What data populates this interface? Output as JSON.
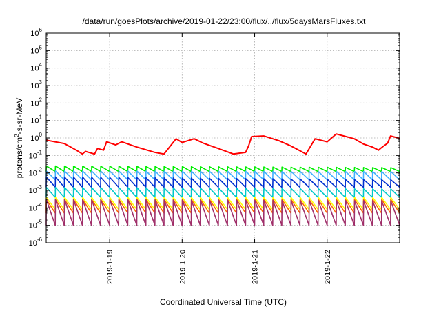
{
  "chart_data": {
    "type": "line",
    "title": "/data/run/goesPlots/archive/2019-01-22/23:00/flux/../flux/5daysMarsFluxes.txt",
    "xlabel": "Coordinated Universal Time (UTC)",
    "ylabel": "protons/cm²-s-sr-MeV",
    "y_scale": "log",
    "ylim_exponents": [
      -6,
      6
    ],
    "y_tick_labels": [
      "10-6",
      "10-5",
      "10-4",
      "10-3",
      "10-2",
      "10-1",
      "100",
      "101",
      "102",
      "103",
      "104",
      "105",
      "106"
    ],
    "x_unit": "day",
    "xlim": [
      "2019-01-18 03:00",
      "2019-01-23 00:00"
    ],
    "x_ticks": [
      "2019-1-19",
      "2019-1-20",
      "2019-1-21",
      "2019-1-22"
    ],
    "grid": true,
    "legend": "none",
    "series": [
      {
        "color": "#ff0000",
        "x": [
          "2019-01-18 03:00",
          "2019-01-18 09:00",
          "2019-01-18 13:00",
          "2019-01-18 15:00",
          "2019-01-18 16:00",
          "2019-01-18 19:00",
          "2019-01-18 20:00",
          "2019-01-18 22:00",
          "2019-01-18 23:00",
          "2019-01-19 02:00",
          "2019-01-19 04:00",
          "2019-01-19 09:00",
          "2019-01-19 15:00",
          "2019-01-19 18:00",
          "2019-01-19 22:00",
          "2019-01-20 00:00",
          "2019-01-20 04:00",
          "2019-01-20 07:00",
          "2019-01-20 12:00",
          "2019-01-20 17:00",
          "2019-01-20 21:00",
          "2019-01-20 22:00",
          "2019-01-20 23:00",
          "2019-01-21 03:00",
          "2019-01-21 08:00",
          "2019-01-21 12:00",
          "2019-01-21 17:00",
          "2019-01-21 20:00",
          "2019-01-22 00:00",
          "2019-01-22 03:00",
          "2019-01-22 09:00",
          "2019-01-22 12:00",
          "2019-01-22 15:00",
          "2019-01-22 17:00",
          "2019-01-22 18:00",
          "2019-01-22 20:00",
          "2019-01-22 21:00",
          "2019-01-23 00:00"
        ],
        "y": [
          0.75,
          0.48,
          0.2,
          0.12,
          0.17,
          0.12,
          0.25,
          0.2,
          0.6,
          0.4,
          0.6,
          0.3,
          0.15,
          0.12,
          0.9,
          0.55,
          0.9,
          0.5,
          0.25,
          0.12,
          0.15,
          0.35,
          1.2,
          1.3,
          0.7,
          0.35,
          0.12,
          0.9,
          0.6,
          1.7,
          0.9,
          0.45,
          0.3,
          0.2,
          0.28,
          0.5,
          1.3,
          0.95
        ]
      },
      {
        "color": "#00ee00",
        "x": [
          "2019-01-18 03:00",
          "2019-01-23 00:00"
        ],
        "y": [
          0.025,
          0.02
        ],
        "low": 0.012
      },
      {
        "color": "#40b0ff",
        "x": [
          "2019-01-18 03:00",
          "2019-01-23 00:00"
        ],
        "y": [
          0.013,
          0.012
        ],
        "low": 0.004
      },
      {
        "color": "#0030d0",
        "x": [
          "2019-01-18 03:00",
          "2019-01-23 00:00"
        ],
        "y": [
          0.006,
          0.004
        ],
        "low": 0.0015
      },
      {
        "color": "#00c8c8",
        "x": [
          "2019-01-18 03:00",
          "2019-01-23 00:00"
        ],
        "y": [
          0.0015,
          0.0012
        ],
        "low": 0.0004
      },
      {
        "color": "#ffff00",
        "x": [
          "2019-01-18 03:00",
          "2019-01-23 00:00"
        ],
        "y": [
          0.0004,
          0.0004
        ],
        "low": 8e-05
      },
      {
        "color": "#ff6600",
        "x": [
          "2019-01-18 03:00",
          "2019-01-23 00:00"
        ],
        "y": [
          0.0003,
          0.0003
        ],
        "low": 5e-05
      },
      {
        "color": "#a0306a",
        "x": [
          "2019-01-18 03:00",
          "2019-01-23 00:00"
        ],
        "y": [
          0.0003,
          0.00025
        ],
        "low": 1e-05
      }
    ]
  }
}
